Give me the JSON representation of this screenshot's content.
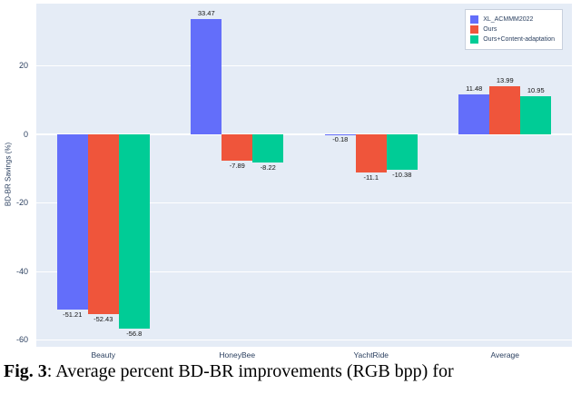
{
  "figure": {
    "caption_label": "Fig. 3",
    "caption_text": ": Average percent BD-BR improvements (RGB bpp) for"
  },
  "chart_data": {
    "type": "bar",
    "categories": [
      "Beauty",
      "HoneyBee",
      "YachtRide",
      "Average"
    ],
    "series": [
      {
        "name": "XL_ACMMM2022",
        "color": "#636EFA",
        "values": [
          -51.21,
          33.47,
          -0.18,
          11.48
        ],
        "labels": [
          "-51.21",
          "33.47",
          "-0.18",
          "11.48"
        ]
      },
      {
        "name": "Ours",
        "color": "#EF553B",
        "values": [
          -52.43,
          -7.89,
          -11.1,
          13.99
        ],
        "labels": [
          "-52.43",
          "-7.89",
          "-11.1",
          "13.99"
        ]
      },
      {
        "name": "Ours+Content-adaptation",
        "color": "#00CC96",
        "values": [
          -56.8,
          -8.22,
          -10.38,
          10.95
        ],
        "labels": [
          "-56.8",
          "-8.22",
          "-10.38",
          "10.95"
        ]
      }
    ],
    "title": "",
    "xlabel": "",
    "ylabel": "BD-BR Savings (%)",
    "ylim": [
      -62,
      38
    ],
    "yticks": [
      20,
      0,
      -20,
      -40,
      -60
    ],
    "plot_bg": "#E5ECF6",
    "grid_color": "#FFFFFF",
    "legend_position": "top-right"
  }
}
